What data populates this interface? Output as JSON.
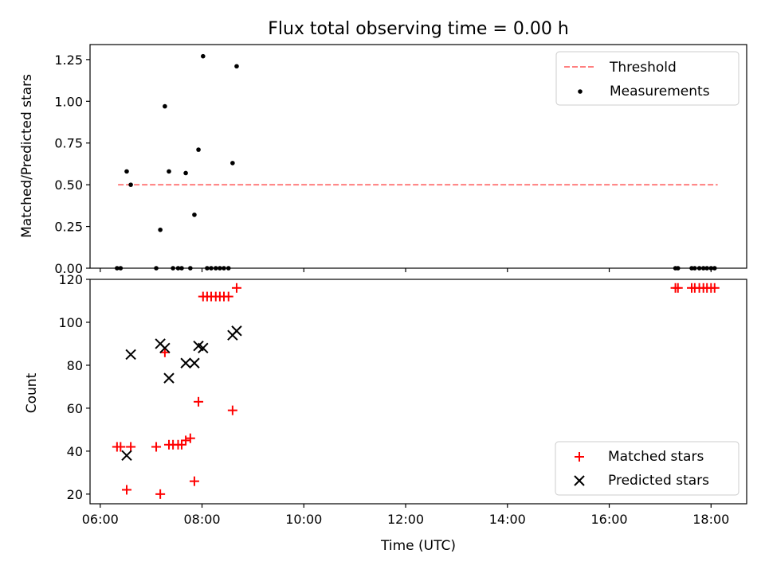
{
  "chart_data": {
    "type": "scatter",
    "title": "Flux total observing time = 0.00 h",
    "xlabel": "Time (UTC)",
    "x_axis": {
      "range_hours": [
        5.8,
        18.7
      ],
      "ticks": [
        6,
        8,
        10,
        12,
        14,
        16,
        18
      ],
      "tick_labels": [
        "06:00",
        "08:00",
        "10:00",
        "12:00",
        "14:00",
        "16:00",
        "18:00"
      ]
    },
    "panels": [
      {
        "name": "ratio",
        "ylabel": "Matched/Predicted stars",
        "ylim": [
          0,
          1.34
        ],
        "yticks": [
          0.0,
          0.25,
          0.5,
          0.75,
          1.0,
          1.25
        ],
        "ytick_labels": [
          "0.00",
          "0.25",
          "0.50",
          "0.75",
          "1.00",
          "1.25"
        ],
        "legend_position": "top-right",
        "series": [
          {
            "name": "Threshold",
            "kind": "dashed-line",
            "color": "#ff7f7f",
            "x": [
              6.35,
              18.13
            ],
            "y": [
              0.5,
              0.5
            ]
          },
          {
            "name": "Measurements",
            "kind": "dots",
            "color": "#000000",
            "x": [
              6.33,
              6.4,
              6.52,
              6.6,
              7.1,
              7.18,
              7.27,
              7.35,
              7.43,
              7.53,
              7.6,
              7.68,
              7.77,
              7.85,
              7.93,
              8.02,
              8.1,
              8.18,
              8.27,
              8.35,
              8.43,
              8.52,
              8.6,
              8.68,
              17.3,
              17.35,
              17.62,
              17.68,
              17.77,
              17.85,
              17.92,
              18.0,
              18.07
            ],
            "y": [
              0.0,
              0.0,
              0.58,
              0.5,
              0.0,
              0.23,
              0.97,
              0.58,
              0.0,
              0.0,
              0.0,
              0.57,
              0.0,
              0.32,
              0.71,
              1.27,
              0.0,
              0.0,
              0.0,
              0.0,
              0.0,
              0.0,
              0.63,
              1.21,
              0.0,
              0.0,
              0.0,
              0.0,
              0.0,
              0.0,
              0.0,
              0.0,
              0.0
            ]
          }
        ]
      },
      {
        "name": "count",
        "ylabel": "Count",
        "ylim": [
          15.5,
          120
        ],
        "yticks": [
          20,
          40,
          60,
          80,
          100,
          120
        ],
        "ytick_labels": [
          "20",
          "40",
          "60",
          "80",
          "100",
          "120"
        ],
        "legend_position": "bottom-right",
        "series": [
          {
            "name": "Matched stars",
            "kind": "plus",
            "color": "#ff0000",
            "x": [
              6.33,
              6.4,
              6.52,
              6.6,
              7.1,
              7.18,
              7.27,
              7.35,
              7.43,
              7.53,
              7.6,
              7.68,
              7.77,
              7.85,
              7.93,
              8.02,
              8.1,
              8.18,
              8.27,
              8.35,
              8.43,
              8.52,
              8.6,
              8.68,
              17.3,
              17.35,
              17.62,
              17.68,
              17.77,
              17.85,
              17.92,
              18.0,
              18.07
            ],
            "y": [
              42,
              42,
              22,
              42,
              42,
              20,
              86,
              43,
              43,
              43,
              43,
              45,
              46,
              26,
              63,
              112,
              112,
              112,
              112,
              112,
              112,
              112,
              59,
              116,
              116,
              116,
              116,
              116,
              116,
              116,
              116,
              116,
              116
            ]
          },
          {
            "name": "Predicted stars",
            "kind": "cross",
            "color": "#000000",
            "x": [
              6.52,
              6.6,
              7.18,
              7.27,
              7.35,
              7.68,
              7.85,
              7.93,
              8.02,
              8.6,
              8.68
            ],
            "y": [
              38,
              85,
              90,
              88,
              74,
              81,
              81,
              89,
              88,
              94,
              96
            ]
          }
        ]
      }
    ]
  }
}
